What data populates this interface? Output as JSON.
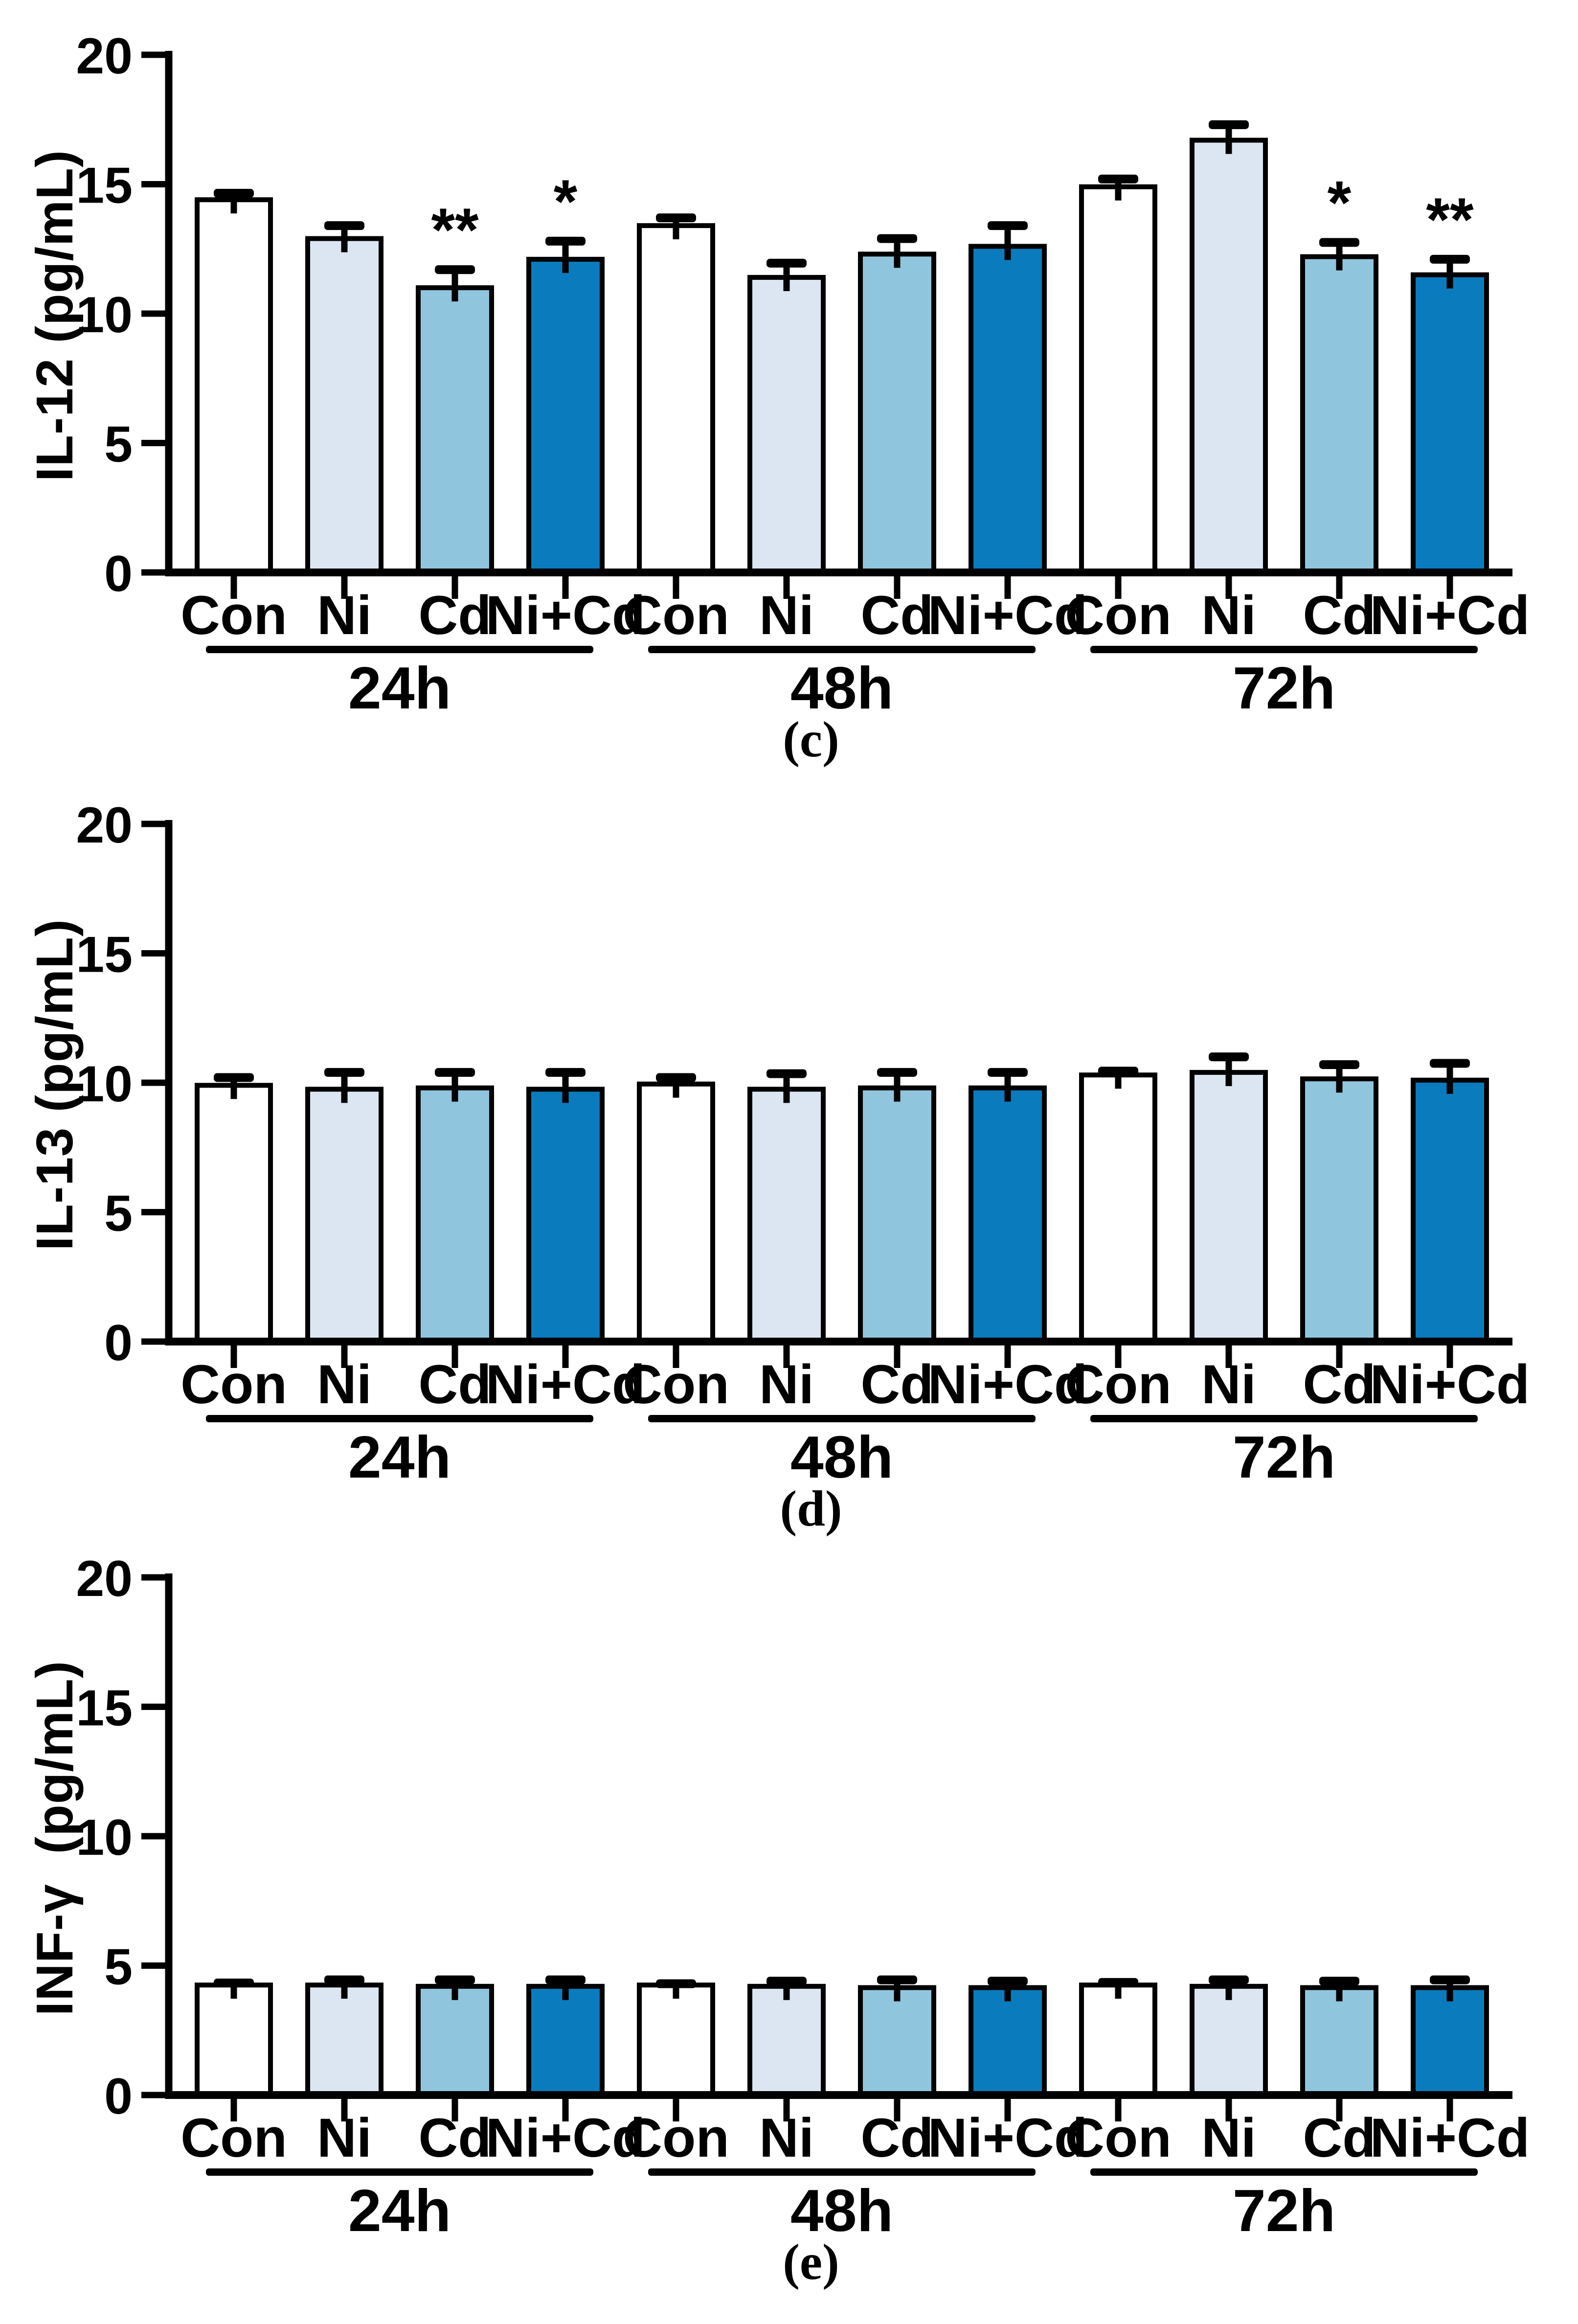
{
  "chart_data": [
    {
      "id": "c",
      "type": "bar",
      "caption": "(c)",
      "ylabel": "IL-12 (pg/mL)",
      "ylim": [
        0,
        20
      ],
      "yticks": [
        0,
        5,
        10,
        15,
        20
      ],
      "grid": false,
      "legend": "none",
      "categories": [
        "Con",
        "Ni",
        "Cd",
        "Ni+Cd"
      ],
      "bar_colors": [
        "#ffffff",
        "#dce6f2",
        "#90c5de",
        "#0a7bbc"
      ],
      "bar_border_color": "#000000",
      "groups": [
        {
          "label": "24h",
          "values": [
            14.4,
            12.9,
            11.0,
            12.1
          ],
          "errors": [
            0.25,
            0.5,
            0.7,
            0.7
          ],
          "sig": [
            "",
            "",
            "**",
            "*"
          ]
        },
        {
          "label": "48h",
          "values": [
            13.4,
            11.4,
            12.3,
            12.6
          ],
          "errors": [
            0.3,
            0.55,
            0.6,
            0.8
          ],
          "sig": [
            "",
            "",
            "",
            ""
          ]
        },
        {
          "label": "72h",
          "values": [
            14.9,
            16.7,
            12.2,
            11.5
          ],
          "errors": [
            0.3,
            0.6,
            0.55,
            0.6
          ],
          "sig": [
            "",
            "",
            "*",
            "**"
          ]
        }
      ]
    },
    {
      "id": "d",
      "type": "bar",
      "caption": "(d)",
      "ylabel": "IL-13 (pg/mL)",
      "ylim": [
        0,
        20
      ],
      "yticks": [
        0,
        5,
        10,
        15,
        20
      ],
      "grid": false,
      "legend": "none",
      "categories": [
        "Con",
        "Ni",
        "Cd",
        "Ni+Cd"
      ],
      "bar_colors": [
        "#ffffff",
        "#dce6f2",
        "#90c5de",
        "#0a7bbc"
      ],
      "bar_border_color": "#000000",
      "groups": [
        {
          "label": "24h",
          "values": [
            9.9,
            9.75,
            9.8,
            9.75
          ],
          "errors": [
            0.3,
            0.65,
            0.6,
            0.65
          ],
          "sig": [
            "",
            "",
            "",
            ""
          ]
        },
        {
          "label": "48h",
          "values": [
            9.95,
            9.75,
            9.8,
            9.8
          ],
          "errors": [
            0.25,
            0.6,
            0.6,
            0.6
          ],
          "sig": [
            "",
            "",
            "",
            ""
          ]
        },
        {
          "label": "72h",
          "values": [
            10.3,
            10.4,
            10.15,
            10.1
          ],
          "errors": [
            0.15,
            0.6,
            0.55,
            0.65
          ],
          "sig": [
            "",
            "",
            "",
            ""
          ]
        }
      ]
    },
    {
      "id": "e",
      "type": "bar",
      "caption": "(e)",
      "ylabel": "INF-γ  (pg/mL)",
      "ylim": [
        0,
        20
      ],
      "yticks": [
        0,
        5,
        10,
        15,
        20
      ],
      "grid": false,
      "legend": "none",
      "categories": [
        "Con",
        "Ni",
        "Cd",
        "Ni+Cd"
      ],
      "bar_colors": [
        "#ffffff",
        "#dce6f2",
        "#90c5de",
        "#0a7bbc"
      ],
      "bar_border_color": "#000000",
      "groups": [
        {
          "label": "24h",
          "values": [
            4.25,
            4.25,
            4.2,
            4.2
          ],
          "errors": [
            0.08,
            0.2,
            0.25,
            0.25
          ],
          "sig": [
            "",
            "",
            "",
            ""
          ]
        },
        {
          "label": "48h",
          "values": [
            4.25,
            4.2,
            4.15,
            4.15
          ],
          "errors": [
            0.05,
            0.2,
            0.3,
            0.25
          ],
          "sig": [
            "",
            "",
            "",
            ""
          ]
        },
        {
          "label": "72h",
          "values": [
            4.25,
            4.2,
            4.15,
            4.15
          ],
          "errors": [
            0.1,
            0.25,
            0.25,
            0.3
          ],
          "sig": [
            "",
            "",
            "",
            ""
          ]
        }
      ]
    }
  ]
}
